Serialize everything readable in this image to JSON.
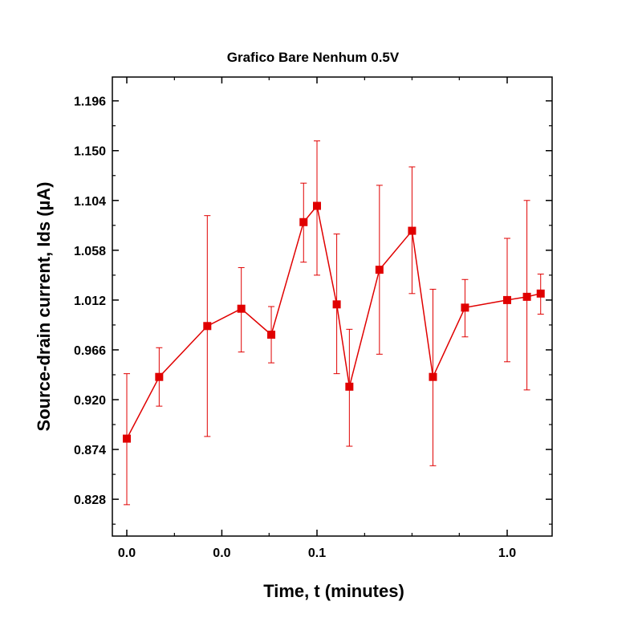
{
  "chart_data": {
    "type": "scatter",
    "title": "Grafico Bare Nenhum 0.5V",
    "xlabel": "Time, t (minutes)",
    "ylabel": "Source-drain current, Ids (µA)",
    "x_scale": "log",
    "x_tick_labels": [
      "0.0",
      "0.0",
      "0.1",
      "1.0"
    ],
    "y_tick_labels": [
      "0.828",
      "0.874",
      "0.920",
      "0.966",
      "1.012",
      "1.058",
      "1.104",
      "1.150",
      "1.196"
    ],
    "ylim": [
      0.794,
      1.218
    ],
    "grid": false,
    "legend": "none",
    "series_color": "#e00000",
    "series": [
      {
        "x": [
          0.01,
          0.0148,
          0.0265,
          0.04,
          0.0575,
          0.085,
          0.1,
          0.127,
          0.148,
          0.213,
          0.316,
          0.407,
          0.6,
          1.0,
          1.27,
          1.5
        ],
        "values": [
          0.884,
          0.941,
          0.988,
          1.004,
          0.98,
          1.084,
          1.099,
          1.008,
          0.932,
          1.04,
          1.076,
          0.941,
          1.005,
          1.012,
          1.015,
          1.018
        ],
        "err_low": [
          0.823,
          0.914,
          0.886,
          0.964,
          0.954,
          1.047,
          1.035,
          0.944,
          0.877,
          0.962,
          1.018,
          0.859,
          0.978,
          0.955,
          0.929,
          0.999
        ],
        "err_high": [
          0.944,
          0.968,
          1.09,
          1.042,
          1.006,
          1.12,
          1.159,
          1.073,
          0.985,
          1.118,
          1.135,
          1.022,
          1.031,
          1.069,
          1.104,
          1.036
        ]
      }
    ]
  }
}
